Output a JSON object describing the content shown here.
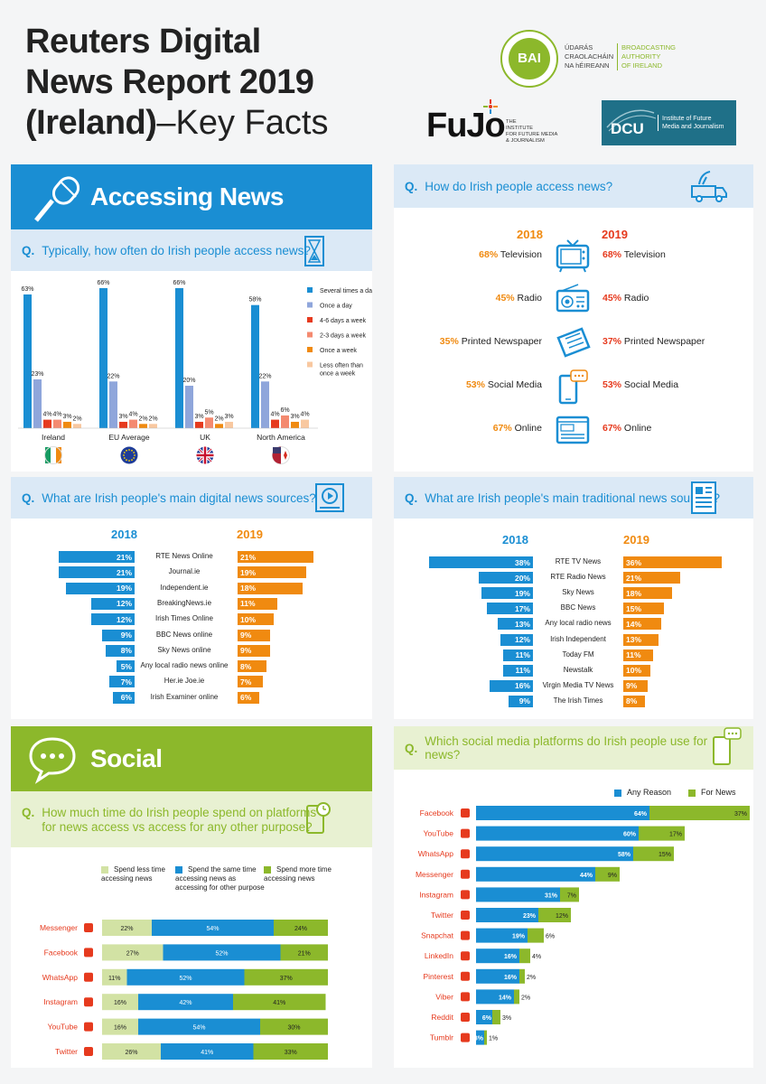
{
  "title": {
    "line1": "Reuters Digital",
    "line2": "News Report 2019",
    "line3a": "(Ireland)",
    "line3b": "–Key Facts"
  },
  "logos": {
    "bai": {
      "abbr": "BAI",
      "irish": [
        "ÚDARÁS",
        "CRAOLACHÁIN",
        "NA hÉIREANN"
      ],
      "english": [
        "BROADCASTING",
        "AUTHORITY",
        "OF IRELAND"
      ]
    },
    "fujo": {
      "name": "FuJo",
      "tagline": [
        "THE",
        "INSTITUTE",
        "FOR FUTURE MEDIA",
        "& JOURNALISM"
      ]
    },
    "dcu": {
      "abbr": "DCU",
      "text": [
        "Institute of Future",
        "Media and Journalism"
      ]
    }
  },
  "colors": {
    "blue": "#1a8ed3",
    "orange": "#f08a10",
    "green": "#8cb82b",
    "red": "#e63a1e",
    "salmon": "#f48a70",
    "peach": "#f8c8a0",
    "lightblue": "#8fa6db",
    "lightgreen": "#d2e2a4",
    "panelblue": "#dbe9f6",
    "panelgreen": "#e8f1d2"
  },
  "accessing": {
    "header": "Accessing News",
    "icon": "microphone-icon"
  },
  "frequency": {
    "q": "Q.",
    "question": "Typically, how often do Irish people access news?",
    "icon": "hourglass-icon",
    "legend": [
      "Several times a day",
      "Once a day",
      "4-6 days a week",
      "2-3 days  a week",
      "Once a week",
      "Less often than once a week"
    ],
    "flags": [
      "ireland-flag-icon",
      "eu-flag-icon",
      "uk-flag-icon",
      "north-america-flag-icon"
    ]
  },
  "access_methods": {
    "q": "Q.",
    "question": "How do Irish people access news?",
    "icon": "satellite-van-icon",
    "year1": "2018",
    "year2": "2019",
    "rows": [
      {
        "y1": "68%",
        "label1": "Television",
        "y2": "68%",
        "label2": "Television",
        "icon": "television-icon"
      },
      {
        "y1": "45%",
        "label1": "Radio",
        "y2": "45%",
        "label2": "Radio",
        "icon": "radio-icon"
      },
      {
        "y1": "35%",
        "label1": "Printed Newspaper",
        "y2": "37%",
        "label2": "Printed Newspaper",
        "icon": "newspaper-icon"
      },
      {
        "y1": "53%",
        "label1": "Social Media",
        "y2": "53%",
        "label2": "Social Media",
        "icon": "smartphone-chat-icon"
      },
      {
        "y1": "67%",
        "label1": "Online",
        "y2": "67%",
        "label2": "Online",
        "icon": "online-news-icon"
      }
    ]
  },
  "digital_sources": {
    "q": "Q.",
    "question": "What are Irish people's main digital news sources?",
    "icon": "video-play-icon",
    "year1": "2018",
    "year2": "2019",
    "rows": [
      {
        "name": "RTE  News Online",
        "v2018": 21,
        "v2019": 21
      },
      {
        "name": "Journal.ie",
        "v2018": 21,
        "v2019": 19
      },
      {
        "name": "Independent.ie",
        "v2018": 19,
        "v2019": 18
      },
      {
        "name": "BreakingNews.ie",
        "v2018": 12,
        "v2019": 11
      },
      {
        "name": "Irish Times Online",
        "v2018": 12,
        "v2019": 10
      },
      {
        "name": "BBC News online",
        "v2018": 9,
        "v2019": 9
      },
      {
        "name": "Sky News online",
        "v2018": 8,
        "v2019": 9
      },
      {
        "name": "Any local radio news online",
        "v2018": 5,
        "v2019": 8
      },
      {
        "name": "Her.ie Joe.ie",
        "v2018": 7,
        "v2019": 7
      },
      {
        "name": "Irish Examiner online",
        "v2018": 6,
        "v2019": 6
      }
    ]
  },
  "traditional_sources": {
    "q": "Q.",
    "question": "What are Irish people's main traditional news sources?",
    "icon": "newspaper-doc-icon",
    "year1": "2018",
    "year2": "2019",
    "rows": [
      {
        "name": "RTE TV News",
        "v2018": 38,
        "v2019": 36
      },
      {
        "name": "RTE Radio News",
        "v2018": 20,
        "v2019": 21
      },
      {
        "name": "Sky News",
        "v2018": 19,
        "v2019": 18
      },
      {
        "name": "BBC News",
        "v2018": 17,
        "v2019": 15
      },
      {
        "name": "Any local radio news",
        "v2018": 13,
        "v2019": 14
      },
      {
        "name": "Irish Independent",
        "v2018": 12,
        "v2019": 13
      },
      {
        "name": "Today FM",
        "v2018": 11,
        "v2019": 11
      },
      {
        "name": "Newstalk",
        "v2018": 11,
        "v2019": 10
      },
      {
        "name": "Virgin Media TV News",
        "v2018": 16,
        "v2019": 9
      },
      {
        "name": "The Irish Times",
        "v2018": 9,
        "v2019": 8
      }
    ]
  },
  "social": {
    "header": "Social",
    "icon": "speech-bubble-icon"
  },
  "time_spent": {
    "q": "Q.",
    "question_line1": "How much time do Irish people spend on platforms",
    "question_line2": "for news access vs access for any other purpose?",
    "icon": "phone-timer-icon",
    "legend": [
      {
        "label": "Spend less time accessing news",
        "color": "#d2e2a4"
      },
      {
        "label": "Spend the same time accessing news as accessing for other purpose",
        "color": "#1a8ed3"
      },
      {
        "label": "Spend more time accessing news",
        "color": "#8cb82b"
      }
    ]
  },
  "platforms": {
    "q": "Q.",
    "question": "Which social media platforms do Irish people use for news?",
    "icon": "phone-chat-icon",
    "legend": [
      "Any Reason",
      "For News"
    ]
  },
  "chart_data": [
    {
      "type": "bar",
      "title": "Typically, how often do Irish people access news?",
      "categories": [
        "Ireland",
        "EU Average",
        "UK",
        "North America"
      ],
      "series": [
        {
          "name": "Several times a day",
          "values": [
            63,
            66,
            66,
            58
          ]
        },
        {
          "name": "Once a day",
          "values": [
            23,
            22,
            20,
            22
          ]
        },
        {
          "name": "4-6 days a week",
          "values": [
            4,
            3,
            3,
            4
          ]
        },
        {
          "name": "2-3 days  a week",
          "values": [
            4,
            4,
            5,
            6
          ]
        },
        {
          "name": "Once a week",
          "values": [
            3,
            2,
            2,
            3
          ]
        },
        {
          "name": "Less often than once a week",
          "values": [
            2,
            2,
            3,
            4
          ]
        }
      ]
    },
    {
      "type": "bar",
      "title": "How much time do Irish people spend on platforms for news access vs access for any other purpose?",
      "categories": [
        "Messenger",
        "Facebook",
        "WhatsApp",
        "Instagram",
        "YouTube",
        "Twitter"
      ],
      "series": [
        {
          "name": "Spend less time accessing news",
          "values": [
            22,
            27,
            11,
            16,
            16,
            26
          ]
        },
        {
          "name": "Spend the same time accessing news as accessing for other purpose",
          "values": [
            54,
            52,
            52,
            42,
            54,
            41
          ]
        },
        {
          "name": "Spend more time accessing news",
          "values": [
            24,
            21,
            37,
            41,
            30,
            33
          ]
        }
      ]
    },
    {
      "type": "bar",
      "title": "Which social media platforms do Irish people use for news?",
      "categories": [
        "Facebook",
        "YouTube",
        "WhatsApp",
        "Messenger",
        "Instagram",
        "Twitter",
        "Snapchat",
        "LinkedIn",
        "Pinterest",
        "Viber",
        "Reddit",
        "Tumblr"
      ],
      "series": [
        {
          "name": "Any Reason",
          "values": [
            64,
            60,
            58,
            44,
            31,
            23,
            19,
            16,
            16,
            14,
            6,
            3
          ]
        },
        {
          "name": "For News",
          "values": [
            37,
            17,
            15,
            9,
            7,
            12,
            6,
            4,
            2,
            2,
            3,
            1
          ]
        }
      ]
    }
  ]
}
